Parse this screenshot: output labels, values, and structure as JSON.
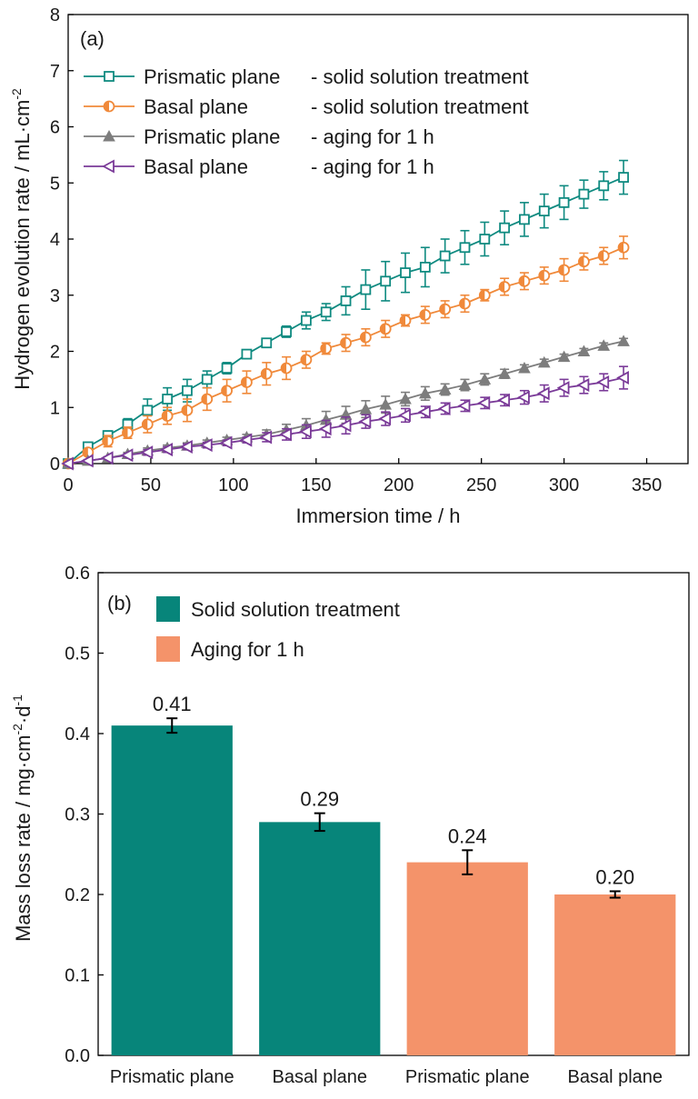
{
  "colors": {
    "teal": "#0e8a80",
    "orange": "#f0893a",
    "gray": "#7d7d7d",
    "purple": "#7a3a98",
    "bar_teal": "#07857a",
    "bar_orange": "#f4936a"
  },
  "chart_data": [
    {
      "type": "line",
      "panel_label": "(a)",
      "xlabel": "Immersion time / h",
      "ylabel": "Hydrogen evolution rate / mL·cm",
      "ylabel_sup": "-2",
      "xlim": [
        0,
        375
      ],
      "ylim": [
        0,
        8
      ],
      "x_ticks": [
        "0",
        "50",
        "100",
        "150",
        "200",
        "250",
        "300",
        "350"
      ],
      "y_ticks": [
        "0",
        "1",
        "2",
        "3",
        "4",
        "5",
        "6",
        "7",
        "8"
      ],
      "legend_position": "top-left",
      "x": [
        0,
        12,
        24,
        36,
        48,
        60,
        72,
        84,
        96,
        108,
        120,
        132,
        144,
        156,
        168,
        180,
        192,
        204,
        216,
        228,
        240,
        252,
        264,
        276,
        288,
        300,
        312,
        324,
        336
      ],
      "series": [
        {
          "name": "Prismatic plane - solid solution treatment",
          "marker": "square",
          "color_key": "teal",
          "values": [
            0,
            0.3,
            0.5,
            0.7,
            0.95,
            1.15,
            1.3,
            1.5,
            1.7,
            1.95,
            2.15,
            2.35,
            2.55,
            2.7,
            2.9,
            3.1,
            3.25,
            3.4,
            3.5,
            3.7,
            3.85,
            4.0,
            4.2,
            4.35,
            4.5,
            4.65,
            4.8,
            4.95,
            5.1
          ],
          "errors": [
            0,
            0.05,
            0.08,
            0.1,
            0.2,
            0.2,
            0.2,
            0.15,
            0.1,
            0.05,
            0.05,
            0.1,
            0.15,
            0.15,
            0.25,
            0.35,
            0.35,
            0.35,
            0.35,
            0.3,
            0.3,
            0.3,
            0.3,
            0.3,
            0.3,
            0.3,
            0.25,
            0.25,
            0.3
          ]
        },
        {
          "name": "Basal plane       - solid solution treatment",
          "marker": "half-circle",
          "color_key": "orange",
          "values": [
            0,
            0.2,
            0.4,
            0.55,
            0.7,
            0.85,
            0.95,
            1.15,
            1.3,
            1.45,
            1.6,
            1.7,
            1.85,
            2.05,
            2.15,
            2.25,
            2.4,
            2.55,
            2.65,
            2.75,
            2.85,
            3.0,
            3.15,
            3.25,
            3.35,
            3.45,
            3.6,
            3.7,
            3.85
          ],
          "errors": [
            0,
            0.05,
            0.1,
            0.1,
            0.15,
            0.15,
            0.2,
            0.2,
            0.2,
            0.2,
            0.2,
            0.2,
            0.15,
            0.1,
            0.15,
            0.15,
            0.15,
            0.1,
            0.15,
            0.15,
            0.15,
            0.1,
            0.15,
            0.15,
            0.15,
            0.2,
            0.15,
            0.15,
            0.2
          ]
        },
        {
          "name": "Prismatic plane - aging for 1 h",
          "marker": "triangle-up",
          "color_key": "gray",
          "values": [
            0,
            0.05,
            0.1,
            0.17,
            0.23,
            0.28,
            0.32,
            0.37,
            0.42,
            0.47,
            0.52,
            0.6,
            0.68,
            0.78,
            0.87,
            0.97,
            1.05,
            1.15,
            1.25,
            1.32,
            1.4,
            1.5,
            1.6,
            1.7,
            1.8,
            1.9,
            2.0,
            2.1,
            2.18
          ],
          "errors": [
            0,
            0.02,
            0.02,
            0.03,
            0.05,
            0.05,
            0.05,
            0.05,
            0.05,
            0.05,
            0.08,
            0.1,
            0.12,
            0.15,
            0.15,
            0.15,
            0.15,
            0.12,
            0.12,
            0.1,
            0.1,
            0.1,
            0.08,
            0.06,
            0.06,
            0.05,
            0.05,
            0.05,
            0.05
          ]
        },
        {
          "name": "Basal plane       - aging for 1 h",
          "marker": "triangle-left",
          "color_key": "purple",
          "values": [
            0,
            0.05,
            0.1,
            0.15,
            0.2,
            0.25,
            0.3,
            0.33,
            0.37,
            0.42,
            0.47,
            0.52,
            0.57,
            0.62,
            0.68,
            0.75,
            0.8,
            0.86,
            0.92,
            0.98,
            1.03,
            1.08,
            1.13,
            1.18,
            1.25,
            1.35,
            1.4,
            1.45,
            1.53
          ],
          "errors": [
            0,
            0.02,
            0.02,
            0.03,
            0.05,
            0.05,
            0.05,
            0.05,
            0.05,
            0.05,
            0.08,
            0.1,
            0.12,
            0.15,
            0.15,
            0.12,
            0.12,
            0.12,
            0.1,
            0.1,
            0.1,
            0.1,
            0.1,
            0.12,
            0.15,
            0.15,
            0.15,
            0.15,
            0.2
          ]
        }
      ]
    },
    {
      "type": "bar",
      "panel_label": "(b)",
      "ylabel": "Mass loss rate / mg·cm",
      "ylabel_sup1": "-2",
      "ylabel_mid": "·d",
      "ylabel_sup2": "-1",
      "ylim": [
        0.0,
        0.6
      ],
      "y_ticks": [
        "0.0",
        "0.1",
        "0.2",
        "0.3",
        "0.4",
        "0.5",
        "0.6"
      ],
      "categories": [
        "Prismatic plane",
        "Basal plane",
        "Prismatic plane",
        "Basal plane"
      ],
      "values": [
        0.41,
        0.29,
        0.24,
        0.2
      ],
      "value_labels": [
        "0.41",
        "0.29",
        "0.24",
        "0.20"
      ],
      "errors": [
        0.009,
        0.011,
        0.015,
        0.004
      ],
      "bar_groups": [
        "Solid solution treatment",
        "Solid solution treatment",
        "Aging for 1 h",
        "Aging for 1 h"
      ],
      "legend": [
        {
          "label": "Solid solution treatment",
          "color_key": "bar_teal"
        },
        {
          "label": "Aging for 1 h",
          "color_key": "bar_orange"
        }
      ],
      "legend_position": "top-left"
    }
  ]
}
